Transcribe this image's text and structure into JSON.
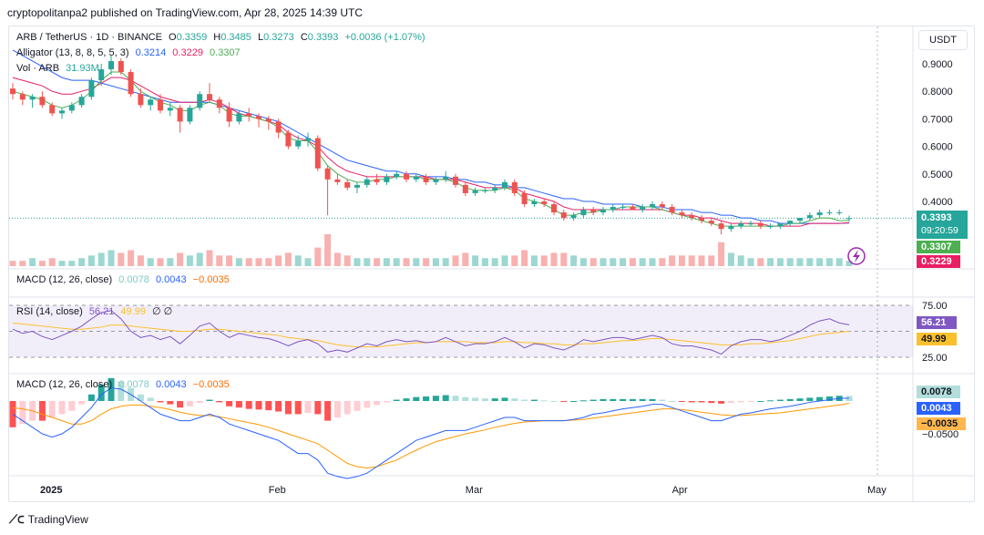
{
  "header": {
    "text": "cryptopolitanpa2 published on TradingView.com, Apr 28, 2025 14:39 UTC"
  },
  "legend": {
    "symbol": "ARB / TetherUS · 1D · BINANCE",
    "open_label": "O",
    "open": "0.3359",
    "high_label": "H",
    "high": "0.3485",
    "low_label": "L",
    "low": "0.3273",
    "close_label": "C",
    "close": "0.3393",
    "change": "+0.0036 (+1.07%)",
    "alligator_label": "Alligator (13, 8, 8, 5, 5, 3)",
    "alligator_jaw": "0.3214",
    "alligator_teeth": "0.3229",
    "alligator_lips": "0.3307",
    "vol_label": "Vol · ARB",
    "vol_value": "31.93M",
    "macd_small_label": "MACD (12, 26, close)",
    "macd_small_hist": "0.0078",
    "macd_small_macd": "0.0043",
    "macd_small_signal": "−0.0035",
    "rsi_label": "RSI (14, close)",
    "rsi_value": "56.21",
    "rsi_ma": "49.99",
    "rsi_extra": "∅ ∅",
    "macd_label": "MACD (12, 26, close)",
    "macd_hist": "0.0078",
    "macd_macd": "0.0043",
    "macd_signal": "−0.0035"
  },
  "price_axis": {
    "unit": "USDT"
  },
  "tags": {
    "price": "0.3393",
    "countdown": "09:20:59",
    "lips": "0.3307",
    "teeth": "0.3229",
    "rsi": "56.21",
    "rsi_ma": "49.99",
    "macd_hist": "0.0078",
    "macd_macd": "0.0043",
    "macd_signal": "−0.0035"
  },
  "footer": {
    "brand": "TradingView"
  },
  "colors": {
    "up": "#26a69a",
    "down": "#ef5350",
    "jaw": "#2962ff",
    "teeth": "#e91e63",
    "lips": "#4caf50",
    "rsi": "#7e57c2",
    "rsi_ma": "#fbc02d",
    "macd": "#2962ff",
    "signal": "#ff9800"
  },
  "chart_data": {
    "type": "candlestick",
    "symbol": "ARB / TetherUS",
    "interval": "1D",
    "y_ticks": [
      0.9,
      0.8,
      0.7,
      0.6,
      0.5,
      0.4
    ],
    "y_tick_labels": [
      "0.9000",
      "0.8000",
      "0.7000",
      "0.6000",
      "0.5000",
      "0.4000"
    ],
    "x_labels": [
      "2025",
      "Feb",
      "Mar",
      "Apr",
      "May"
    ],
    "ohlc": [
      [
        0.81,
        0.83,
        0.77,
        0.79
      ],
      [
        0.79,
        0.8,
        0.75,
        0.77
      ],
      [
        0.77,
        0.79,
        0.74,
        0.78
      ],
      [
        0.78,
        0.8,
        0.74,
        0.75
      ],
      [
        0.75,
        0.76,
        0.71,
        0.72
      ],
      [
        0.72,
        0.74,
        0.7,
        0.73
      ],
      [
        0.73,
        0.76,
        0.72,
        0.75
      ],
      [
        0.75,
        0.79,
        0.74,
        0.78
      ],
      [
        0.78,
        0.85,
        0.77,
        0.84
      ],
      [
        0.84,
        0.9,
        0.82,
        0.88
      ],
      [
        0.88,
        0.93,
        0.86,
        0.91
      ],
      [
        0.91,
        0.92,
        0.86,
        0.87
      ],
      [
        0.87,
        0.88,
        0.78,
        0.79
      ],
      [
        0.79,
        0.81,
        0.74,
        0.75
      ],
      [
        0.75,
        0.78,
        0.73,
        0.77
      ],
      [
        0.77,
        0.79,
        0.72,
        0.73
      ],
      [
        0.73,
        0.76,
        0.71,
        0.74
      ],
      [
        0.74,
        0.75,
        0.65,
        0.69
      ],
      [
        0.69,
        0.75,
        0.68,
        0.74
      ],
      [
        0.74,
        0.8,
        0.73,
        0.79
      ],
      [
        0.79,
        0.83,
        0.76,
        0.77
      ],
      [
        0.77,
        0.78,
        0.72,
        0.74
      ],
      [
        0.74,
        0.76,
        0.67,
        0.69
      ],
      [
        0.69,
        0.73,
        0.68,
        0.72
      ],
      [
        0.72,
        0.74,
        0.69,
        0.71
      ],
      [
        0.71,
        0.72,
        0.67,
        0.7
      ],
      [
        0.7,
        0.71,
        0.66,
        0.69
      ],
      [
        0.69,
        0.7,
        0.63,
        0.65
      ],
      [
        0.65,
        0.66,
        0.59,
        0.6
      ],
      [
        0.6,
        0.64,
        0.59,
        0.62
      ],
      [
        0.62,
        0.65,
        0.6,
        0.63
      ],
      [
        0.63,
        0.64,
        0.51,
        0.52
      ],
      [
        0.52,
        0.53,
        0.35,
        0.48
      ],
      [
        0.48,
        0.5,
        0.46,
        0.47
      ],
      [
        0.47,
        0.48,
        0.44,
        0.45
      ],
      [
        0.45,
        0.47,
        0.43,
        0.46
      ],
      [
        0.46,
        0.49,
        0.45,
        0.48
      ],
      [
        0.48,
        0.5,
        0.46,
        0.47
      ],
      [
        0.47,
        0.5,
        0.46,
        0.49
      ],
      [
        0.49,
        0.51,
        0.48,
        0.5
      ],
      [
        0.5,
        0.51,
        0.47,
        0.48
      ],
      [
        0.48,
        0.5,
        0.47,
        0.49
      ],
      [
        0.49,
        0.5,
        0.46,
        0.47
      ],
      [
        0.47,
        0.49,
        0.46,
        0.48
      ],
      [
        0.48,
        0.51,
        0.47,
        0.49
      ],
      [
        0.49,
        0.5,
        0.45,
        0.46
      ],
      [
        0.46,
        0.47,
        0.42,
        0.43
      ],
      [
        0.43,
        0.45,
        0.42,
        0.44
      ],
      [
        0.44,
        0.45,
        0.43,
        0.44
      ],
      [
        0.44,
        0.46,
        0.43,
        0.45
      ],
      [
        0.45,
        0.48,
        0.44,
        0.47
      ],
      [
        0.47,
        0.48,
        0.42,
        0.43
      ],
      [
        0.43,
        0.44,
        0.38,
        0.39
      ],
      [
        0.39,
        0.41,
        0.38,
        0.4
      ],
      [
        0.4,
        0.41,
        0.38,
        0.39
      ],
      [
        0.39,
        0.4,
        0.35,
        0.36
      ],
      [
        0.36,
        0.37,
        0.33,
        0.34
      ],
      [
        0.34,
        0.36,
        0.33,
        0.35
      ],
      [
        0.35,
        0.38,
        0.34,
        0.37
      ],
      [
        0.37,
        0.38,
        0.35,
        0.36
      ],
      [
        0.36,
        0.38,
        0.35,
        0.37
      ],
      [
        0.37,
        0.39,
        0.36,
        0.38
      ],
      [
        0.38,
        0.39,
        0.37,
        0.38
      ],
      [
        0.38,
        0.39,
        0.37,
        0.37
      ],
      [
        0.37,
        0.39,
        0.36,
        0.38
      ],
      [
        0.38,
        0.4,
        0.37,
        0.39
      ],
      [
        0.39,
        0.4,
        0.37,
        0.38
      ],
      [
        0.38,
        0.39,
        0.35,
        0.36
      ],
      [
        0.36,
        0.37,
        0.34,
        0.35
      ],
      [
        0.35,
        0.36,
        0.33,
        0.34
      ],
      [
        0.34,
        0.35,
        0.32,
        0.33
      ],
      [
        0.33,
        0.34,
        0.31,
        0.32
      ],
      [
        0.32,
        0.33,
        0.28,
        0.3
      ],
      [
        0.3,
        0.32,
        0.29,
        0.31
      ],
      [
        0.31,
        0.33,
        0.3,
        0.32
      ],
      [
        0.32,
        0.33,
        0.31,
        0.32
      ],
      [
        0.32,
        0.33,
        0.3,
        0.31
      ],
      [
        0.31,
        0.32,
        0.3,
        0.31
      ],
      [
        0.31,
        0.32,
        0.3,
        0.32
      ],
      [
        0.32,
        0.33,
        0.31,
        0.33
      ],
      [
        0.33,
        0.34,
        0.32,
        0.34
      ],
      [
        0.34,
        0.36,
        0.33,
        0.35
      ],
      [
        0.35,
        0.37,
        0.34,
        0.36
      ],
      [
        0.36,
        0.37,
        0.35,
        0.36
      ],
      [
        0.36,
        0.37,
        0.35,
        0.36
      ],
      [
        0.3359,
        0.3485,
        0.3273,
        0.3393
      ]
    ],
    "alligator_jaw": [
      0.95,
      0.93,
      0.91,
      0.89,
      0.87,
      0.85,
      0.84,
      0.84,
      0.84,
      0.83,
      0.82,
      0.81,
      0.8,
      0.79,
      0.78,
      0.77,
      0.76,
      0.76,
      0.76,
      0.76,
      0.76,
      0.75,
      0.74,
      0.73,
      0.72,
      0.71,
      0.7,
      0.69,
      0.67,
      0.65,
      0.63,
      0.61,
      0.59,
      0.57,
      0.55,
      0.54,
      0.53,
      0.52,
      0.51,
      0.51,
      0.5,
      0.5,
      0.49,
      0.49,
      0.49,
      0.48,
      0.48,
      0.47,
      0.47,
      0.46,
      0.46,
      0.45,
      0.45,
      0.44,
      0.43,
      0.42,
      0.41,
      0.41,
      0.4,
      0.4,
      0.39,
      0.39,
      0.39,
      0.39,
      0.38,
      0.38,
      0.38,
      0.37,
      0.37,
      0.37,
      0.36,
      0.36,
      0.35,
      0.35,
      0.34,
      0.34,
      0.33,
      0.33,
      0.32,
      0.32,
      0.32,
      0.32,
      0.32,
      0.32,
      0.32,
      0.3214
    ],
    "alligator_teeth": [
      0.85,
      0.84,
      0.83,
      0.82,
      0.8,
      0.79,
      0.79,
      0.8,
      0.81,
      0.83,
      0.85,
      0.85,
      0.84,
      0.82,
      0.8,
      0.78,
      0.77,
      0.76,
      0.76,
      0.76,
      0.77,
      0.76,
      0.74,
      0.72,
      0.71,
      0.7,
      0.69,
      0.68,
      0.65,
      0.63,
      0.62,
      0.6,
      0.56,
      0.53,
      0.51,
      0.5,
      0.49,
      0.49,
      0.49,
      0.49,
      0.49,
      0.49,
      0.49,
      0.48,
      0.48,
      0.48,
      0.47,
      0.46,
      0.45,
      0.45,
      0.45,
      0.45,
      0.43,
      0.42,
      0.41,
      0.4,
      0.38,
      0.37,
      0.37,
      0.37,
      0.37,
      0.37,
      0.37,
      0.37,
      0.37,
      0.37,
      0.37,
      0.36,
      0.35,
      0.35,
      0.34,
      0.34,
      0.33,
      0.32,
      0.32,
      0.32,
      0.32,
      0.31,
      0.31,
      0.31,
      0.31,
      0.32,
      0.32,
      0.32,
      0.32,
      0.3229
    ],
    "alligator_lips": [
      0.8,
      0.79,
      0.78,
      0.77,
      0.75,
      0.74,
      0.75,
      0.77,
      0.8,
      0.84,
      0.87,
      0.87,
      0.84,
      0.8,
      0.78,
      0.76,
      0.75,
      0.73,
      0.73,
      0.75,
      0.76,
      0.75,
      0.72,
      0.71,
      0.71,
      0.7,
      0.69,
      0.67,
      0.63,
      0.62,
      0.62,
      0.58,
      0.53,
      0.5,
      0.48,
      0.47,
      0.47,
      0.48,
      0.48,
      0.49,
      0.49,
      0.49,
      0.48,
      0.48,
      0.48,
      0.47,
      0.45,
      0.44,
      0.44,
      0.44,
      0.45,
      0.44,
      0.41,
      0.4,
      0.39,
      0.37,
      0.35,
      0.35,
      0.36,
      0.36,
      0.37,
      0.37,
      0.38,
      0.38,
      0.38,
      0.38,
      0.37,
      0.36,
      0.35,
      0.34,
      0.33,
      0.32,
      0.31,
      0.31,
      0.31,
      0.31,
      0.31,
      0.31,
      0.31,
      0.32,
      0.32,
      0.33,
      0.34,
      0.34,
      0.33,
      0.3307
    ],
    "volume": [
      2,
      2,
      3,
      2,
      3,
      2,
      2,
      3,
      4,
      5,
      6,
      5,
      6,
      4,
      3,
      3,
      3,
      5,
      4,
      5,
      6,
      4,
      4,
      3,
      3,
      3,
      3,
      4,
      5,
      4,
      3,
      7,
      12,
      5,
      4,
      3,
      3,
      3,
      3,
      3,
      3,
      3,
      3,
      3,
      3,
      4,
      5,
      4,
      3,
      3,
      4,
      4,
      6,
      4,
      4,
      5,
      5,
      4,
      3,
      3,
      3,
      3,
      3,
      3,
      3,
      3,
      3,
      4,
      4,
      4,
      4,
      4,
      9,
      5,
      4,
      3,
      3,
      3,
      3,
      3,
      3,
      3,
      3,
      3,
      3,
      2
    ],
    "rsi": [
      52,
      48,
      50,
      45,
      42,
      46,
      50,
      55,
      62,
      68,
      70,
      62,
      50,
      44,
      46,
      42,
      45,
      38,
      46,
      55,
      58,
      50,
      44,
      48,
      46,
      44,
      43,
      40,
      36,
      40,
      42,
      38,
      30,
      32,
      30,
      34,
      38,
      36,
      40,
      42,
      40,
      41,
      39,
      40,
      44,
      40,
      36,
      38,
      38,
      40,
      44,
      40,
      34,
      38,
      37,
      34,
      32,
      36,
      42,
      40,
      42,
      44,
      44,
      42,
      44,
      46,
      44,
      38,
      36,
      36,
      34,
      32,
      28,
      36,
      40,
      42,
      42,
      40,
      42,
      46,
      50,
      56,
      60,
      62,
      58,
      56.21
    ],
    "rsi_ma": [
      58,
      57,
      56,
      55,
      54,
      53,
      52,
      52,
      53,
      54,
      56,
      56,
      55,
      54,
      53,
      52,
      51,
      50,
      50,
      51,
      52,
      52,
      51,
      50,
      49,
      48,
      47,
      46,
      44,
      43,
      42,
      41,
      39,
      37,
      36,
      35,
      35,
      35,
      36,
      37,
      38,
      39,
      39,
      40,
      40,
      40,
      40,
      39,
      39,
      39,
      40,
      40,
      39,
      39,
      38,
      38,
      37,
      37,
      38,
      38,
      39,
      40,
      41,
      41,
      42,
      43,
      43,
      42,
      41,
      40,
      39,
      38,
      37,
      37,
      37,
      38,
      38,
      39,
      40,
      41,
      43,
      45,
      47,
      48,
      49,
      49.99
    ],
    "macd_hist": [
      -0.04,
      -0.035,
      -0.03,
      -0.03,
      -0.025,
      -0.02,
      -0.015,
      -0.005,
      0.01,
      0.025,
      0.035,
      0.03,
      0.02,
      0.01,
      0.005,
      -0.002,
      -0.005,
      -0.01,
      -0.008,
      -0.003,
      0.002,
      -0.002,
      -0.008,
      -0.01,
      -0.012,
      -0.013,
      -0.014,
      -0.016,
      -0.02,
      -0.02,
      -0.018,
      -0.02,
      -0.03,
      -0.025,
      -0.02,
      -0.015,
      -0.01,
      -0.006,
      -0.002,
      0.002,
      0.004,
      0.006,
      0.007,
      0.008,
      0.009,
      0.008,
      0.006,
      0.005,
      0.004,
      0.004,
      0.005,
      0.004,
      0.002,
      0.002,
      0.001,
      0.0,
      -0.001,
      0.0,
      0.001,
      0.002,
      0.003,
      0.003,
      0.003,
      0.003,
      0.003,
      0.003,
      0.002,
      0.0,
      -0.001,
      -0.002,
      -0.002,
      -0.003,
      -0.004,
      -0.003,
      -0.002,
      -0.001,
      0.0,
      0.001,
      0.002,
      0.003,
      0.004,
      0.005,
      0.006,
      0.007,
      0.008,
      0.0078
    ],
    "macd_line": [
      -0.02,
      -0.03,
      -0.04,
      -0.05,
      -0.055,
      -0.05,
      -0.04,
      -0.025,
      -0.01,
      0.01,
      0.02,
      0.018,
      0.01,
      0.0,
      -0.01,
      -0.02,
      -0.025,
      -0.03,
      -0.03,
      -0.025,
      -0.02,
      -0.025,
      -0.035,
      -0.04,
      -0.045,
      -0.05,
      -0.055,
      -0.06,
      -0.07,
      -0.08,
      -0.08,
      -0.09,
      -0.11,
      -0.115,
      -0.118,
      -0.115,
      -0.11,
      -0.1,
      -0.09,
      -0.08,
      -0.07,
      -0.06,
      -0.055,
      -0.05,
      -0.045,
      -0.045,
      -0.045,
      -0.04,
      -0.035,
      -0.03,
      -0.025,
      -0.025,
      -0.03,
      -0.03,
      -0.03,
      -0.03,
      -0.03,
      -0.028,
      -0.025,
      -0.02,
      -0.018,
      -0.015,
      -0.012,
      -0.01,
      -0.008,
      -0.005,
      -0.005,
      -0.01,
      -0.015,
      -0.02,
      -0.025,
      -0.03,
      -0.03,
      -0.025,
      -0.02,
      -0.018,
      -0.015,
      -0.012,
      -0.01,
      -0.008,
      -0.005,
      -0.002,
      0.0,
      0.002,
      0.004,
      0.0043
    ],
    "macd_signal": [
      -0.01,
      -0.012,
      -0.015,
      -0.02,
      -0.025,
      -0.03,
      -0.035,
      -0.035,
      -0.03,
      -0.02,
      -0.012,
      -0.008,
      -0.006,
      -0.006,
      -0.008,
      -0.01,
      -0.013,
      -0.017,
      -0.02,
      -0.022,
      -0.022,
      -0.024,
      -0.027,
      -0.03,
      -0.033,
      -0.036,
      -0.04,
      -0.045,
      -0.05,
      -0.055,
      -0.06,
      -0.065,
      -0.075,
      -0.085,
      -0.095,
      -0.1,
      -0.102,
      -0.1,
      -0.095,
      -0.09,
      -0.082,
      -0.075,
      -0.068,
      -0.062,
      -0.058,
      -0.054,
      -0.05,
      -0.047,
      -0.044,
      -0.04,
      -0.037,
      -0.034,
      -0.032,
      -0.031,
      -0.03,
      -0.03,
      -0.03,
      -0.029,
      -0.028,
      -0.026,
      -0.024,
      -0.022,
      -0.02,
      -0.018,
      -0.016,
      -0.014,
      -0.012,
      -0.012,
      -0.013,
      -0.015,
      -0.017,
      -0.019,
      -0.021,
      -0.022,
      -0.022,
      -0.021,
      -0.02,
      -0.019,
      -0.018,
      -0.016,
      -0.014,
      -0.012,
      -0.01,
      -0.008,
      -0.006,
      -0.0035
    ]
  }
}
